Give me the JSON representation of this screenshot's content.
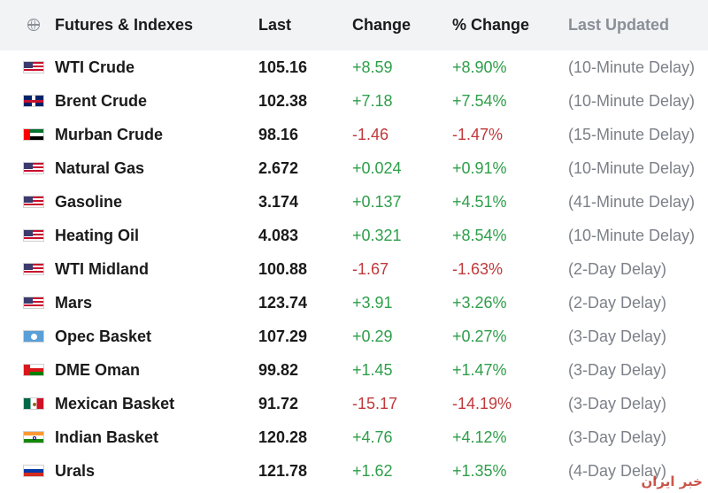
{
  "header": {
    "name": "Futures & Indexes",
    "last": "Last",
    "change": "Change",
    "pct_change": "% Change",
    "last_updated": "Last Updated"
  },
  "colors": {
    "up": "#2e9e4a",
    "down": "#c0393b",
    "header_bg": "#f2f3f5"
  },
  "rows": [
    {
      "flag": "us-flag-icon",
      "name": "WTI Crude",
      "last": "105.16",
      "change": "+8.59",
      "pct": "+8.90%",
      "updated": "(10-Minute Delay)",
      "dir": "up"
    },
    {
      "flag": "uk-flag-icon",
      "name": "Brent Crude",
      "last": "102.38",
      "change": "+7.18",
      "pct": "+7.54%",
      "updated": "(10-Minute Delay)",
      "dir": "up"
    },
    {
      "flag": "uae-flag-icon",
      "name": "Murban Crude",
      "last": "98.16",
      "change": "-1.46",
      "pct": "-1.47%",
      "updated": "(15-Minute Delay)",
      "dir": "down"
    },
    {
      "flag": "us-flag-icon",
      "name": "Natural Gas",
      "last": "2.672",
      "change": "+0.024",
      "pct": "+0.91%",
      "updated": "(10-Minute Delay)",
      "dir": "up"
    },
    {
      "flag": "us-flag-icon",
      "name": "Gasoline",
      "last": "3.174",
      "change": "+0.137",
      "pct": "+4.51%",
      "updated": "(41-Minute Delay)",
      "dir": "up"
    },
    {
      "flag": "us-flag-icon",
      "name": "Heating Oil",
      "last": "4.083",
      "change": "+0.321",
      "pct": "+8.54%",
      "updated": "(10-Minute Delay)",
      "dir": "up"
    },
    {
      "flag": "us-flag-icon",
      "name": "WTI Midland",
      "last": "100.88",
      "change": "-1.67",
      "pct": "-1.63%",
      "updated": "(2-Day Delay)",
      "dir": "down"
    },
    {
      "flag": "us-flag-icon",
      "name": "Mars",
      "last": "123.74",
      "change": "+3.91",
      "pct": "+3.26%",
      "updated": "(2-Day Delay)",
      "dir": "up"
    },
    {
      "flag": "opec-flag-icon",
      "name": "Opec Basket",
      "last": "107.29",
      "change": "+0.29",
      "pct": "+0.27%",
      "updated": "(3-Day Delay)",
      "dir": "up"
    },
    {
      "flag": "oman-flag-icon",
      "name": "DME Oman",
      "last": "99.82",
      "change": "+1.45",
      "pct": "+1.47%",
      "updated": "(3-Day Delay)",
      "dir": "up"
    },
    {
      "flag": "mexico-flag-icon",
      "name": "Mexican Basket",
      "last": "91.72",
      "change": "-15.17",
      "pct": "-14.19%",
      "updated": "(3-Day Delay)",
      "dir": "down"
    },
    {
      "flag": "india-flag-icon",
      "name": "Indian Basket",
      "last": "120.28",
      "change": "+4.76",
      "pct": "+4.12%",
      "updated": "(3-Day Delay)",
      "dir": "up"
    },
    {
      "flag": "russia-flag-icon",
      "name": "Urals",
      "last": "121.78",
      "change": "+1.62",
      "pct": "+1.35%",
      "updated": "(4-Day Delay)",
      "dir": "up"
    }
  ],
  "watermark": "خبر ایران"
}
